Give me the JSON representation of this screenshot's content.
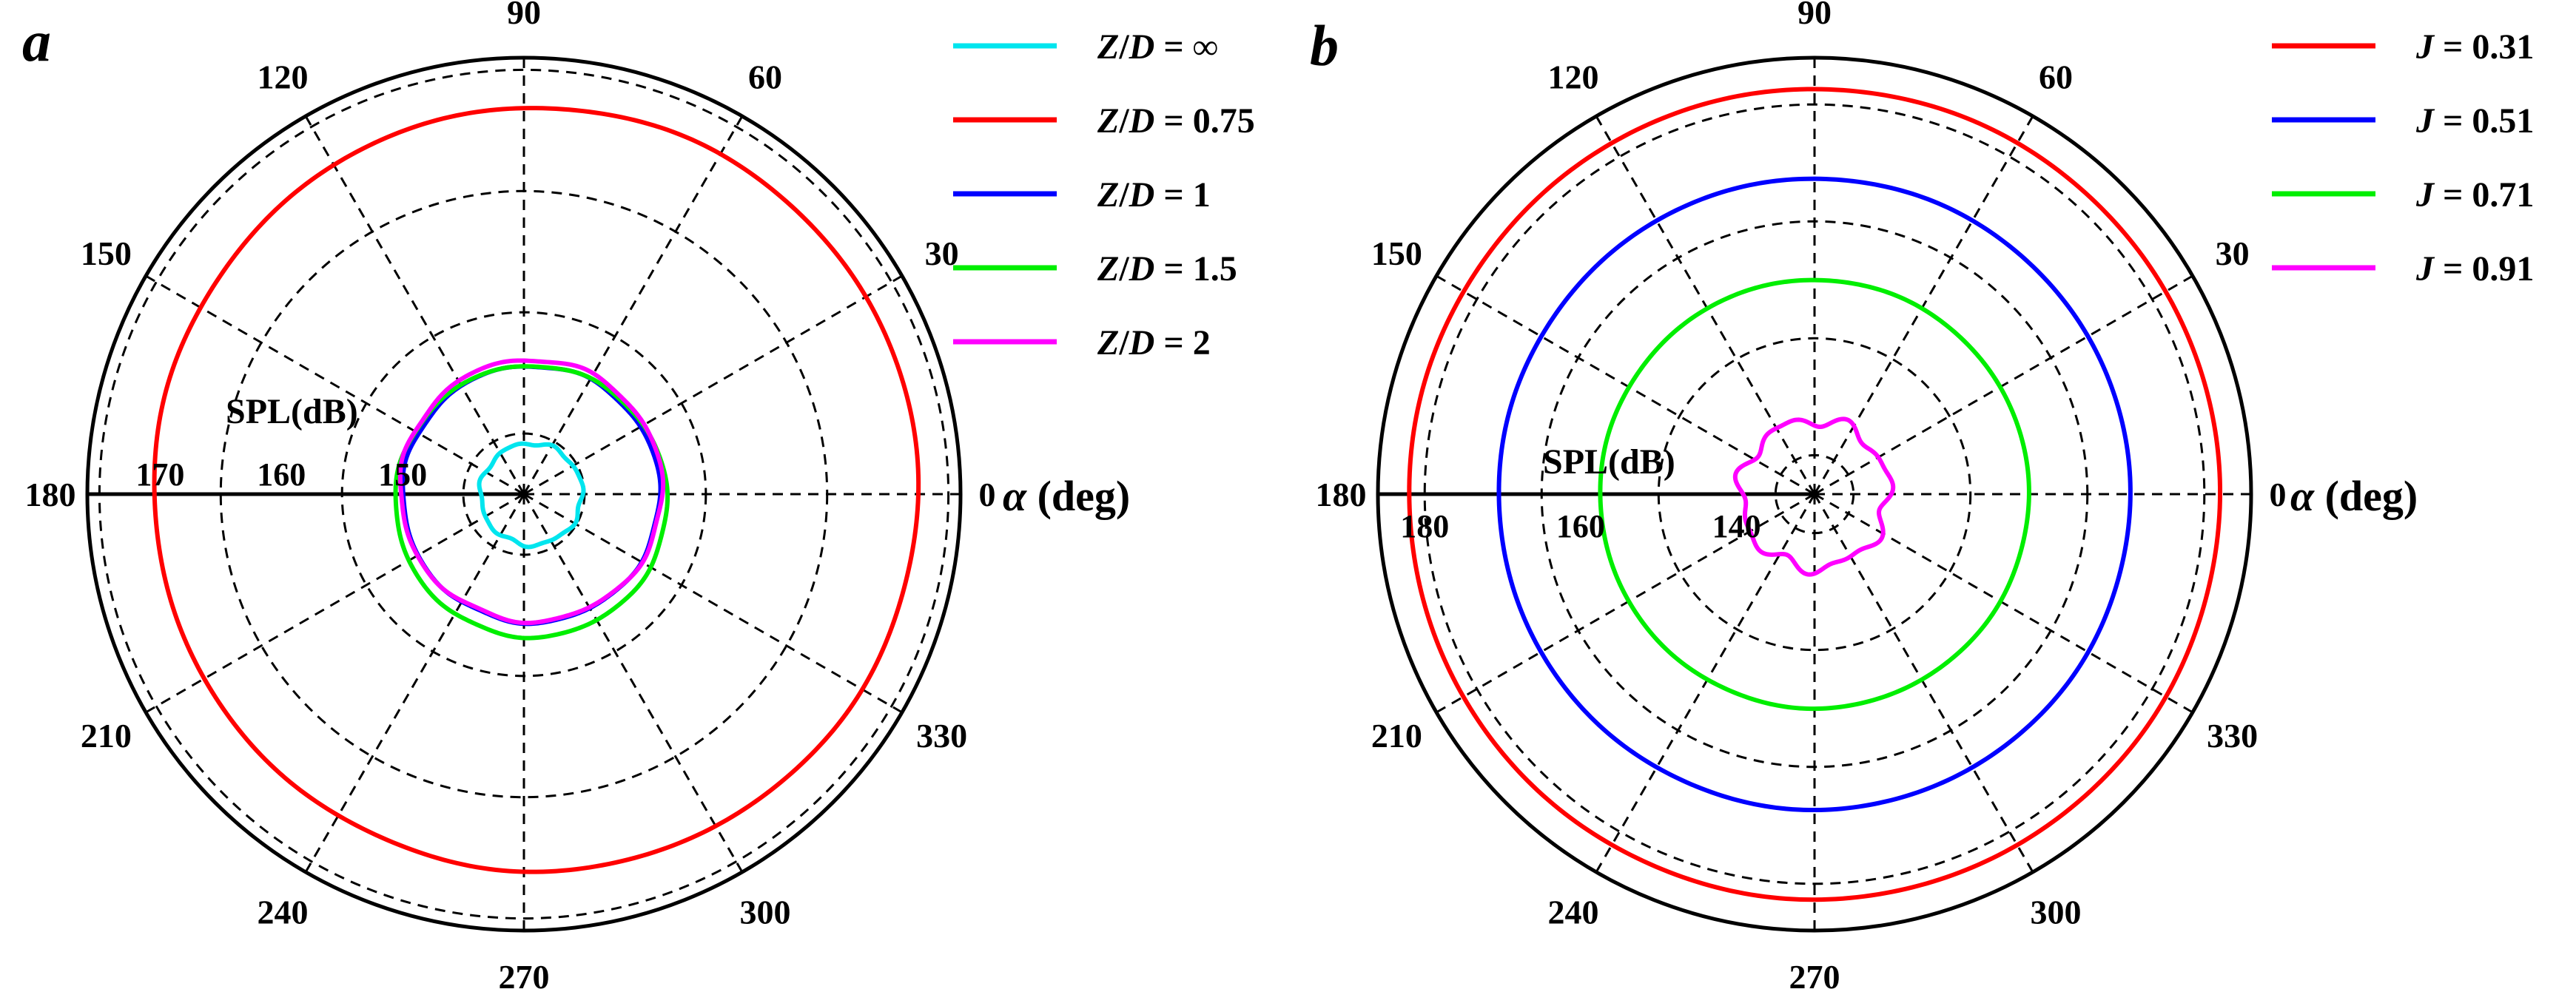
{
  "chart_data": [
    {
      "type": "polar-line",
      "panel_label": "a",
      "angle_axis_label": "α (deg)",
      "angle_ticks": [
        "0",
        "30",
        "60",
        "90",
        "120",
        "150",
        "180",
        "210",
        "240",
        "270",
        "300",
        "330"
      ],
      "radial_axis_label": "SPL(dB)",
      "radial_ticks": [
        150,
        160,
        170
      ],
      "radial_range": [
        140,
        176
      ],
      "radial_grid": [
        145,
        155,
        165,
        175
      ],
      "grid": true,
      "legend_position": "top-right",
      "series": [
        {
          "name": "Z/D = ∞",
          "name_parts": [
            "Z",
            "/",
            "D",
            " = ∞"
          ],
          "color": "#00e5ee",
          "r_center": 144.2,
          "ecc_x": 0.6,
          "ecc_y": 0.0,
          "ripple": 0.12
        },
        {
          "name": "Z/D = 0.75",
          "name_parts": [
            "Z",
            "/",
            "D",
            " = 0.75"
          ],
          "color": "#ff0000",
          "r_center": 171.5,
          "ecc_x": 1.0,
          "ecc_y": 0.4,
          "ripple": 0.05
        },
        {
          "name": "Z/D = 1",
          "name_parts": [
            "Z",
            "/",
            "D",
            " = 1"
          ],
          "color": "#0000ff",
          "r_center": 150.6,
          "ecc_x": 0.6,
          "ecc_y": 0.0,
          "ripple": 0.08
        },
        {
          "name": "Z/D = 1.5",
          "name_parts": [
            "Z",
            "/",
            "D",
            " = 1.5"
          ],
          "color": "#00ee00",
          "r_center": 151.2,
          "ecc_x": 0.6,
          "ecc_y": -0.6,
          "ripple": 0.06
        },
        {
          "name": "Z/D = 2",
          "name_parts": [
            "Z",
            "/",
            "D",
            " = 2"
          ],
          "color": "#ff00ff",
          "r_center": 150.8,
          "ecc_x": 0.6,
          "ecc_y": 0.3,
          "ripple": 0.1
        }
      ]
    },
    {
      "type": "polar-line",
      "panel_label": "b",
      "angle_axis_label": "α (deg)",
      "angle_ticks": [
        "0",
        "30",
        "60",
        "90",
        "120",
        "150",
        "180",
        "210",
        "240",
        "270",
        "300",
        "330"
      ],
      "radial_axis_label": "SPL(dB)",
      "radial_ticks": [
        140,
        160,
        180
      ],
      "radial_range": [
        130,
        186
      ],
      "radial_grid": [
        135,
        150,
        165,
        180
      ],
      "grid": true,
      "legend_position": "top-right",
      "series": [
        {
          "name": "J = 0.31",
          "name_parts": [
            "J",
            "",
            "",
            " = 0.31"
          ],
          "color": "#ff0000",
          "r_center": 182.0,
          "ecc_x": 0.0,
          "ecc_y": 0.0,
          "ripple": 0.03
        },
        {
          "name": "J = 0.51",
          "name_parts": [
            "J",
            "",
            "",
            " = 0.51"
          ],
          "color": "#0000ff",
          "r_center": 170.5,
          "ecc_x": 0.0,
          "ecc_y": 0.0,
          "ripple": 0.03
        },
        {
          "name": "J = 0.71",
          "name_parts": [
            "J",
            "",
            "",
            " = 0.71"
          ],
          "color": "#00ee00",
          "r_center": 157.5,
          "ecc_x": 0.0,
          "ecc_y": 0.0,
          "ripple": 0.03
        },
        {
          "name": "J = 0.91",
          "name_parts": [
            "J",
            "",
            "",
            " = 0.91"
          ],
          "color": "#ff00ff",
          "r_center": 139.5,
          "ecc_x": 0.0,
          "ecc_y": 0.0,
          "ripple": 0.6
        }
      ]
    }
  ]
}
